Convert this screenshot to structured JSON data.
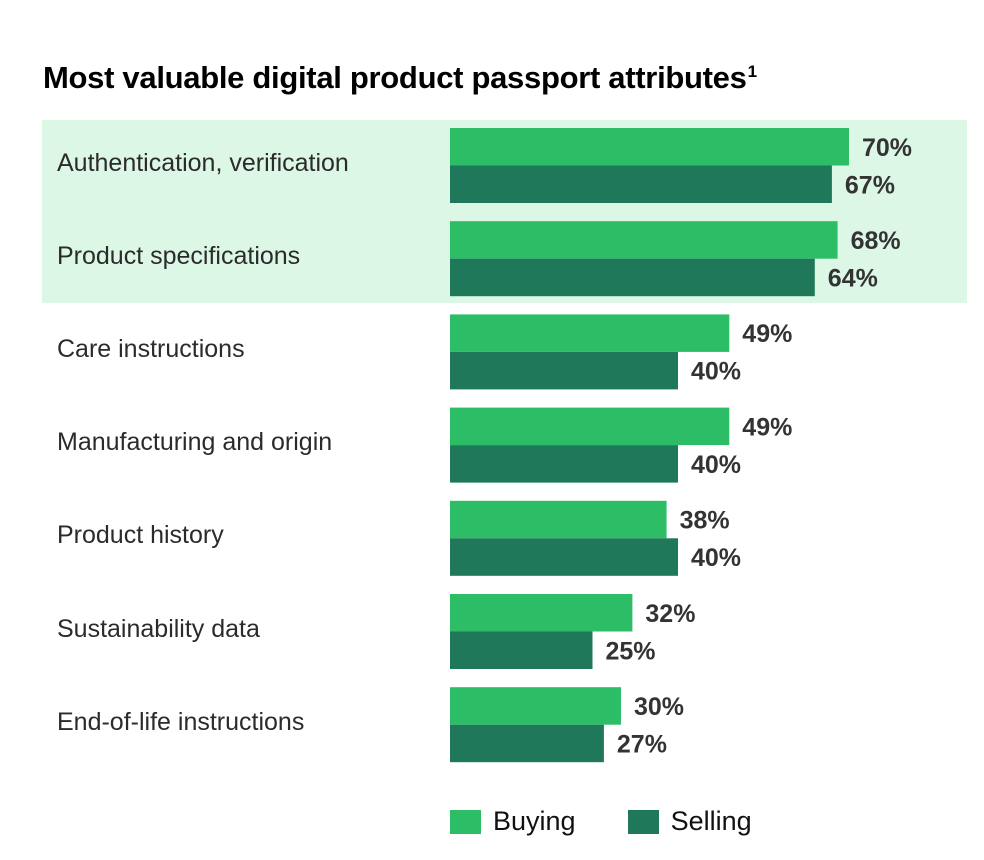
{
  "title": "Most valuable digital product passport attributes",
  "title_footnote": "1",
  "colors": {
    "buying": "#2ebd67",
    "selling": "#20785a",
    "highlight": "#dcf7e6",
    "value_text": "#333333"
  },
  "chart_data": {
    "type": "bar",
    "orientation": "horizontal",
    "title": "Most valuable digital product passport attributes",
    "xlabel": "",
    "ylabel": "",
    "xlim": [
      0,
      100
    ],
    "unit": "%",
    "categories": [
      "Authentication, verification",
      "Product specifications",
      "Care instructions",
      "Manufacturing and origin",
      "Product history",
      "Sustainability data",
      "End-of-life instructions"
    ],
    "highlighted_categories": [
      "Authentication, verification",
      "Product specifications"
    ],
    "series": [
      {
        "name": "Buying",
        "values": [
          70,
          68,
          49,
          49,
          38,
          32,
          30
        ]
      },
      {
        "name": "Selling",
        "values": [
          67,
          64,
          40,
          40,
          40,
          25,
          27
        ]
      }
    ],
    "legend": "bottom",
    "grid": false
  }
}
